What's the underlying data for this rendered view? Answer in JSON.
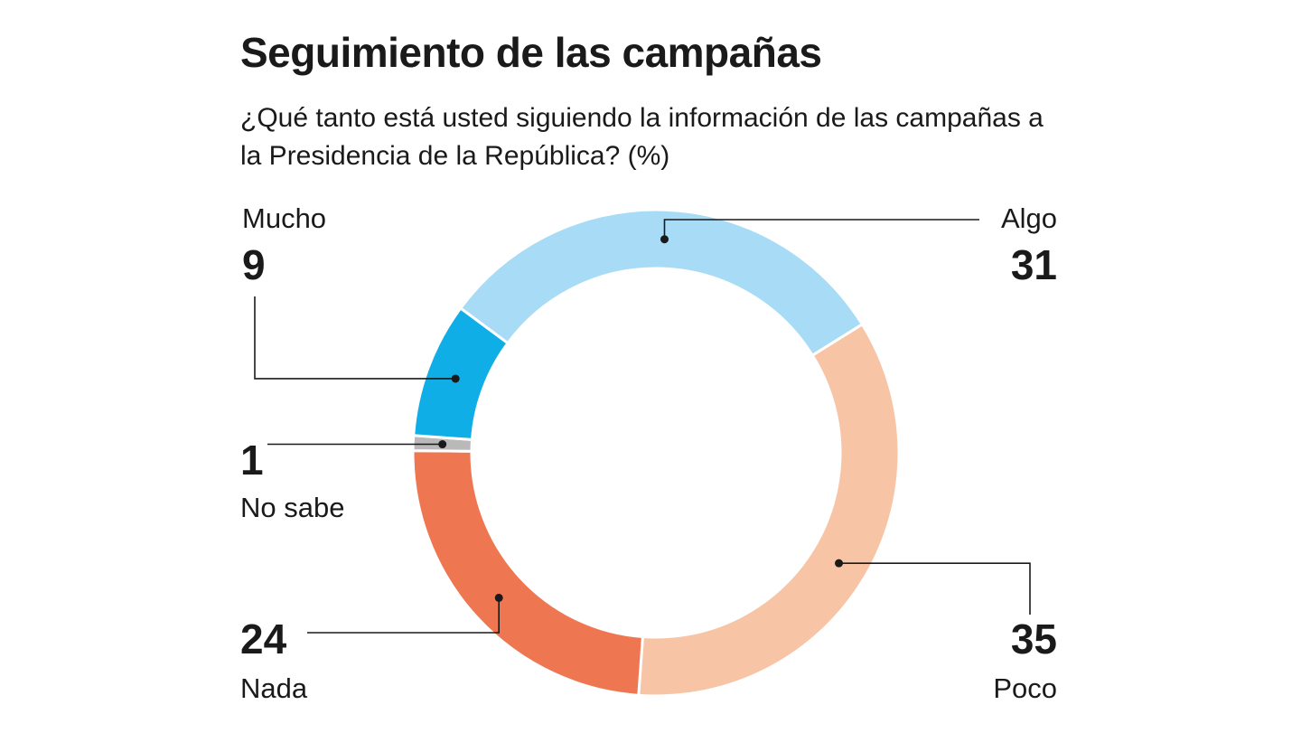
{
  "chart_data": {
    "type": "pie",
    "style": "donut",
    "title": "Seguimiento de las campañas",
    "subtitle": "¿Qué tanto está usted siguiendo la información de las campañas a la Presidencia de la República? (%)",
    "slices": [
      {
        "label": "Algo",
        "value": 31,
        "color": "#a7dbf6"
      },
      {
        "label": "Poco",
        "value": 35,
        "color": "#f8c4a6"
      },
      {
        "label": "Nada",
        "value": 24,
        "color": "#ee7752"
      },
      {
        "label": "No sabe",
        "value": 1,
        "color": "#b9b9b9"
      },
      {
        "label": "Mucho",
        "value": 9,
        "color": "#10aee6"
      }
    ],
    "value_labels": [
      "31",
      "35",
      "24",
      "1",
      "9"
    ],
    "legend": "none"
  }
}
